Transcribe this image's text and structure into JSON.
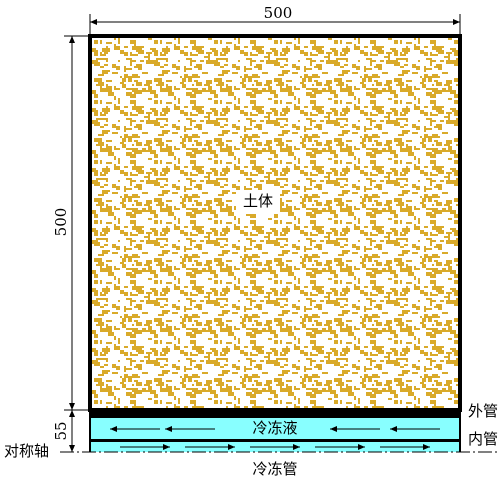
{
  "dimensions": {
    "width": "500",
    "height": "500",
    "pipe": "55"
  },
  "labels": {
    "soil": "土体",
    "coolant": "冷冻液",
    "outer_pipe": "外管",
    "inner_pipe": "内管",
    "axis": "对称轴",
    "freeze_pipe": "冷冻管"
  }
}
